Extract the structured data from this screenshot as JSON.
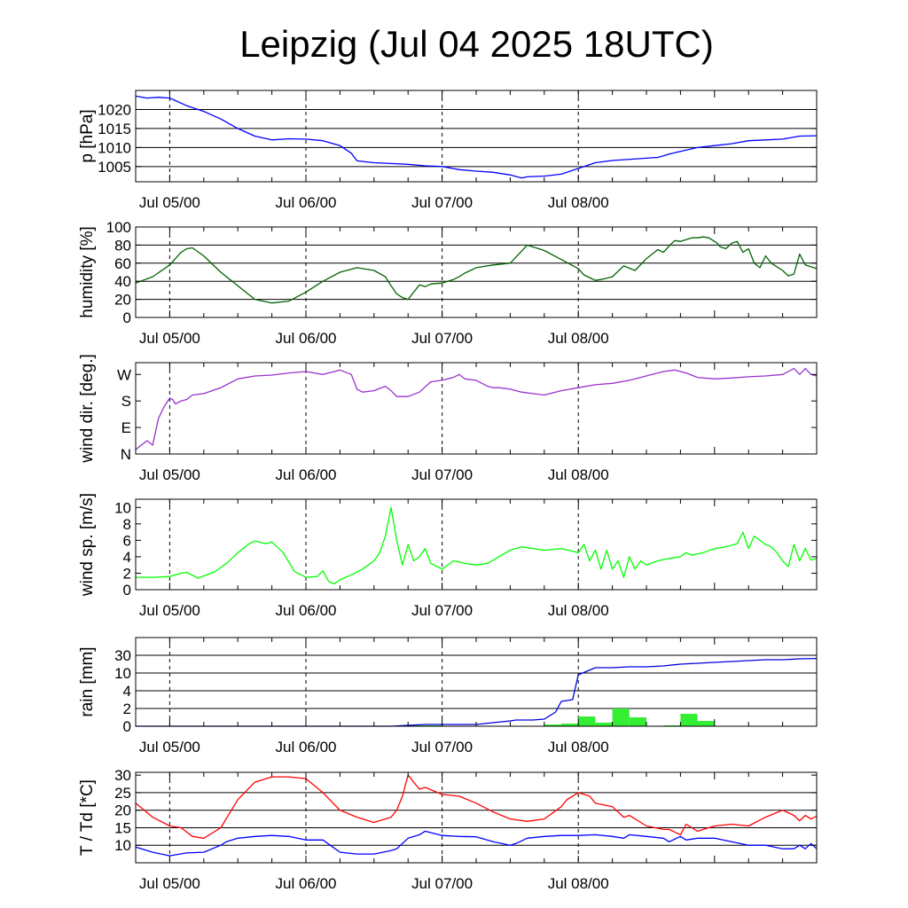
{
  "title": "Leipzig (Jul 04 2025 18UTC)",
  "chart_data": [
    {
      "type": "line",
      "ylabel": "p [hPa]",
      "ylim": [
        1001,
        1025
      ],
      "ticks": [
        1005,
        1010,
        1015,
        1020
      ],
      "tick_labels": [
        "1005",
        "1010",
        "1015",
        "1020"
      ],
      "gridlines": [
        1005,
        1010,
        1015,
        1020
      ],
      "x_ticks": [
        "Jul 05/00",
        "Jul 06/00",
        "Jul 07/00",
        "Jul 08/00"
      ],
      "series": [
        {
          "color": "#0000ff",
          "x": [
            -6,
            -4,
            -2,
            0,
            3,
            6,
            9,
            12,
            15,
            18,
            21,
            24,
            27,
            30,
            32,
            33,
            36,
            39,
            42,
            45,
            48,
            51,
            54,
            57,
            60,
            62,
            63,
            66,
            69,
            72,
            75,
            78,
            80,
            84,
            86,
            87,
            88,
            90,
            93,
            96,
            99,
            102,
            105,
            108,
            111,
            114
          ],
          "y": [
            1023.5,
            1023.0,
            1023.2,
            1023.0,
            1021.0,
            1019.5,
            1017.5,
            1015.0,
            1013.0,
            1012.0,
            1012.3,
            1012.2,
            1011.8,
            1010.5,
            1008.5,
            1006.5,
            1006.0,
            1005.8,
            1005.6,
            1005.2,
            1005.0,
            1004.2,
            1003.8,
            1003.5,
            1002.8,
            1002.0,
            1002.3,
            1002.5,
            1003.0,
            1004.5,
            1006.0,
            1006.6,
            1006.8,
            1007.2,
            1007.4,
            1007.8,
            1008.3,
            1009.0,
            1010.0,
            1010.5,
            1011.0,
            1011.8,
            1012.0,
            1012.2,
            1013.0,
            1013.1
          ]
        }
      ]
    },
    {
      "type": "line",
      "ylabel": "humidity [%]",
      "ylim": [
        0,
        100
      ],
      "ticks": [
        0,
        20,
        40,
        60,
        80,
        100
      ],
      "tick_labels": [
        "0",
        "20",
        "40",
        "60",
        "80",
        "100"
      ],
      "gridlines": [
        20,
        40,
        60,
        80
      ],
      "x_ticks": [
        "Jul 05/00",
        "Jul 06/00",
        "Jul 07/00",
        "Jul 08/00"
      ],
      "series": [
        {
          "color": "#006400",
          "x": [
            -6,
            -3,
            0,
            1,
            2,
            3,
            4,
            6,
            9,
            12,
            14,
            15,
            18,
            21,
            24,
            27,
            30,
            33,
            36,
            38,
            39,
            40,
            41,
            42,
            44,
            45,
            46,
            48,
            50,
            51,
            52,
            54,
            57,
            60,
            63,
            66,
            69,
            72,
            73,
            74,
            75,
            76,
            78,
            80,
            82,
            84,
            86,
            87,
            88,
            89,
            90,
            91,
            92,
            93,
            94,
            95,
            96,
            96.5,
            97,
            98,
            99,
            100,
            101,
            102,
            103,
            104,
            105,
            106,
            107,
            108,
            109,
            110,
            111,
            112,
            113,
            114
          ],
          "y": [
            38,
            45,
            58,
            65,
            72,
            76,
            77,
            68,
            50,
            35,
            25,
            20,
            16,
            18,
            28,
            40,
            50,
            55,
            52,
            45,
            35,
            26,
            22,
            20,
            36,
            34,
            37,
            38,
            42,
            45,
            49,
            55,
            58,
            60,
            80,
            74,
            64,
            54,
            47,
            44,
            41,
            42,
            45,
            57,
            52,
            65,
            75,
            72,
            79,
            85,
            84,
            86,
            88,
            88,
            89,
            88,
            84,
            82,
            78,
            76,
            82,
            84,
            72,
            76,
            60,
            55,
            68,
            60,
            56,
            52,
            46,
            48,
            70,
            58,
            56,
            54
          ]
        }
      ]
    },
    {
      "type": "line",
      "ylabel": "wind dir. [deg.]",
      "ylim": [
        0,
        310
      ],
      "ticks": [
        0,
        90,
        180,
        270
      ],
      "tick_labels": [
        "N",
        "E",
        "S",
        "W"
      ],
      "gridlines": [],
      "x_ticks": [
        "Jul 05/00",
        "Jul 06/00",
        "Jul 07/00",
        "Jul 08/00"
      ],
      "series": [
        {
          "color": "#9932cc",
          "x": [
            -6,
            -4,
            -3,
            -2,
            -1,
            0,
            0.5,
            1,
            2,
            3,
            4,
            6,
            9,
            12,
            15,
            18,
            21,
            24,
            27,
            29,
            30,
            32,
            33,
            34,
            36,
            38,
            39,
            40,
            42,
            44,
            46,
            48,
            50,
            51,
            52,
            54,
            56,
            57,
            58,
            60,
            62,
            64,
            66,
            69,
            72,
            75,
            78,
            81,
            83,
            85,
            87,
            89,
            91,
            93,
            96,
            99,
            102,
            105,
            108,
            110,
            111,
            112,
            113,
            114
          ],
          "y": [
            15,
            45,
            30,
            120,
            160,
            190,
            185,
            170,
            180,
            185,
            200,
            205,
            225,
            255,
            265,
            268,
            275,
            280,
            270,
            280,
            285,
            270,
            220,
            210,
            215,
            230,
            215,
            195,
            195,
            210,
            245,
            250,
            260,
            270,
            255,
            250,
            230,
            225,
            225,
            220,
            210,
            205,
            200,
            215,
            225,
            235,
            240,
            250,
            260,
            270,
            280,
            285,
            275,
            260,
            255,
            258,
            262,
            265,
            270,
            290,
            270,
            290,
            270,
            265
          ]
        }
      ]
    },
    {
      "type": "line",
      "ylabel": "wind sp. [m/s]",
      "ylim": [
        0,
        11
      ],
      "ticks": [
        0,
        2,
        4,
        6,
        8,
        10
      ],
      "tick_labels": [
        "0",
        "2",
        "4",
        "6",
        "8",
        "10"
      ],
      "gridlines": [],
      "x_ticks": [
        "Jul 05/00",
        "Jul 06/00",
        "Jul 07/00",
        "Jul 08/00"
      ],
      "series": [
        {
          "color": "#00ff00",
          "x": [
            -6,
            -3,
            0,
            1,
            2,
            3,
            5,
            8,
            10,
            12,
            14,
            15,
            17,
            18,
            20,
            22,
            24,
            26,
            27,
            28,
            29,
            30,
            32,
            34,
            36,
            37,
            38,
            39,
            40,
            41,
            42,
            43,
            44,
            45,
            46,
            48,
            50,
            52,
            54,
            56,
            58,
            60,
            62,
            64,
            66,
            69,
            72,
            73,
            74,
            75,
            76,
            77,
            78,
            79,
            80,
            81,
            82,
            83,
            84,
            86,
            88,
            90,
            91,
            92,
            94,
            96,
            98,
            100,
            101,
            102,
            103,
            104,
            105,
            106,
            107,
            108,
            109,
            110,
            111,
            112,
            113,
            114
          ],
          "y": [
            1.5,
            1.5,
            1.6,
            1.8,
            2.0,
            2.1,
            1.4,
            2.2,
            3.2,
            4.5,
            5.6,
            5.9,
            5.6,
            5.8,
            4.5,
            2.2,
            1.5,
            1.6,
            2.3,
            1.0,
            0.7,
            1.2,
            1.8,
            2.5,
            3.5,
            4.5,
            6.5,
            10.0,
            6.0,
            3.0,
            5.5,
            3.5,
            4.0,
            5.0,
            3.2,
            2.5,
            3.5,
            3.2,
            3.0,
            3.2,
            4.0,
            4.8,
            5.2,
            5.0,
            4.8,
            5.0,
            4.5,
            5.5,
            3.5,
            4.8,
            2.5,
            4.8,
            2.5,
            3.5,
            1.5,
            4.0,
            2.5,
            3.5,
            3.0,
            3.5,
            3.8,
            4.0,
            4.5,
            4.2,
            4.5,
            5.0,
            5.2,
            5.6,
            7.0,
            5.0,
            6.5,
            6.0,
            5.5,
            5.2,
            4.5,
            3.5,
            2.8,
            5.5,
            3.5,
            5.0,
            3.6,
            3.8
          ]
        }
      ]
    },
    {
      "type": "bar",
      "ylabel": "rain [mm]",
      "ylim": [
        0,
        5
      ],
      "ticks": [
        0,
        1,
        2,
        3,
        4,
        5
      ],
      "tick_labels": [
        "0",
        "2",
        "4",
        "10",
        "30",
        ""
      ],
      "gridlines": [
        1,
        2,
        3,
        4
      ],
      "x_ticks": [
        "Jul 05/00",
        "Jul 06/00",
        "Jul 07/00",
        "Jul 08/00"
      ],
      "bars": {
        "color": "#33ee33",
        "x_start": [
          42,
          45,
          66,
          69,
          72,
          75,
          78,
          81,
          87,
          90,
          93
        ],
        "x_end": [
          45,
          48,
          69,
          72,
          75,
          78,
          81,
          84,
          90,
          93,
          96
        ],
        "y": [
          0.05,
          0.05,
          0.1,
          0.15,
          0.55,
          0.2,
          1.0,
          0.5,
          0.05,
          0.7,
          0.3
        ]
      },
      "series": [
        {
          "name": "",
          "color": "#0000dd",
          "x": [
            -6,
            39,
            42,
            45,
            48,
            51,
            54,
            57,
            60,
            61,
            62,
            63,
            64,
            66,
            68,
            69,
            70,
            71,
            72,
            75,
            78,
            81,
            84,
            87,
            90,
            93,
            96,
            99,
            102,
            105,
            108,
            111,
            114
          ],
          "y": [
            0,
            0,
            0.05,
            0.1,
            0.1,
            0.1,
            0.1,
            0.2,
            0.3,
            0.35,
            0.35,
            0.35,
            0.35,
            0.4,
            0.8,
            1.4,
            1.45,
            1.5,
            2.9,
            3.3,
            3.3,
            3.35,
            3.35,
            3.4,
            3.5,
            3.55,
            3.6,
            3.65,
            3.7,
            3.75,
            3.75,
            3.8,
            3.82
          ]
        }
      ]
    },
    {
      "type": "line",
      "ylabel": "T / Td [*C]",
      "ylim": [
        5,
        30.8
      ],
      "ticks": [
        10,
        15,
        20,
        25,
        30
      ],
      "tick_labels": [
        "10",
        "15",
        "20",
        "25",
        "30"
      ],
      "gridlines": [
        10,
        15,
        20,
        25
      ],
      "x_ticks": [
        "Jul 05/00",
        "Jul 06/00",
        "Jul 07/00",
        "Jul 08/00"
      ],
      "series": [
        {
          "color": "#ff0000",
          "x": [
            -6,
            -3,
            0,
            2,
            4,
            6,
            9,
            12,
            15,
            18,
            21,
            24,
            27,
            30,
            33,
            36,
            39,
            40,
            41,
            42,
            44,
            45,
            48,
            51,
            54,
            57,
            60,
            63,
            66,
            69,
            70,
            72,
            74,
            75,
            78,
            80,
            81,
            84,
            87,
            88,
            90,
            91,
            93,
            96,
            99,
            102,
            105,
            108,
            110,
            111,
            112,
            113,
            114
          ],
          "y": [
            22,
            18,
            15.5,
            15,
            12.5,
            12,
            15,
            23,
            28,
            29.5,
            29.5,
            29,
            25,
            20,
            18,
            16.5,
            18,
            20,
            24,
            30,
            26,
            26.5,
            24.5,
            24,
            22,
            19.5,
            17.5,
            16.8,
            17.5,
            21,
            23,
            25,
            24,
            22,
            21,
            18,
            18.5,
            15.5,
            14.5,
            14.5,
            13,
            16,
            14,
            15.5,
            16,
            15.5,
            18,
            20,
            18.5,
            17,
            18.5,
            17.5,
            18.3
          ]
        },
        {
          "color": "#0000ff",
          "x": [
            -6,
            -3,
            0,
            3,
            6,
            9,
            10,
            12,
            15,
            18,
            21,
            24,
            27,
            30,
            33,
            36,
            39,
            40,
            42,
            44,
            45,
            48,
            51,
            54,
            57,
            60,
            61,
            63,
            66,
            69,
            72,
            75,
            78,
            80,
            81,
            84,
            87,
            88,
            90,
            91,
            93,
            96,
            99,
            102,
            105,
            108,
            110,
            111,
            112,
            113,
            114
          ],
          "y": [
            9.5,
            8,
            7,
            7.8,
            8,
            10,
            11,
            12,
            12.5,
            12.8,
            12.5,
            11.5,
            11.5,
            8,
            7.5,
            7.5,
            8.5,
            9,
            12,
            13,
            14,
            12.8,
            12.5,
            12.4,
            11,
            10,
            10.5,
            12,
            12.5,
            12.8,
            12.8,
            13,
            12.5,
            12,
            13,
            12.5,
            12,
            11,
            12.5,
            11.5,
            12,
            12,
            11,
            10,
            10,
            9,
            9,
            10,
            9,
            10.5,
            9
          ]
        }
      ]
    }
  ]
}
